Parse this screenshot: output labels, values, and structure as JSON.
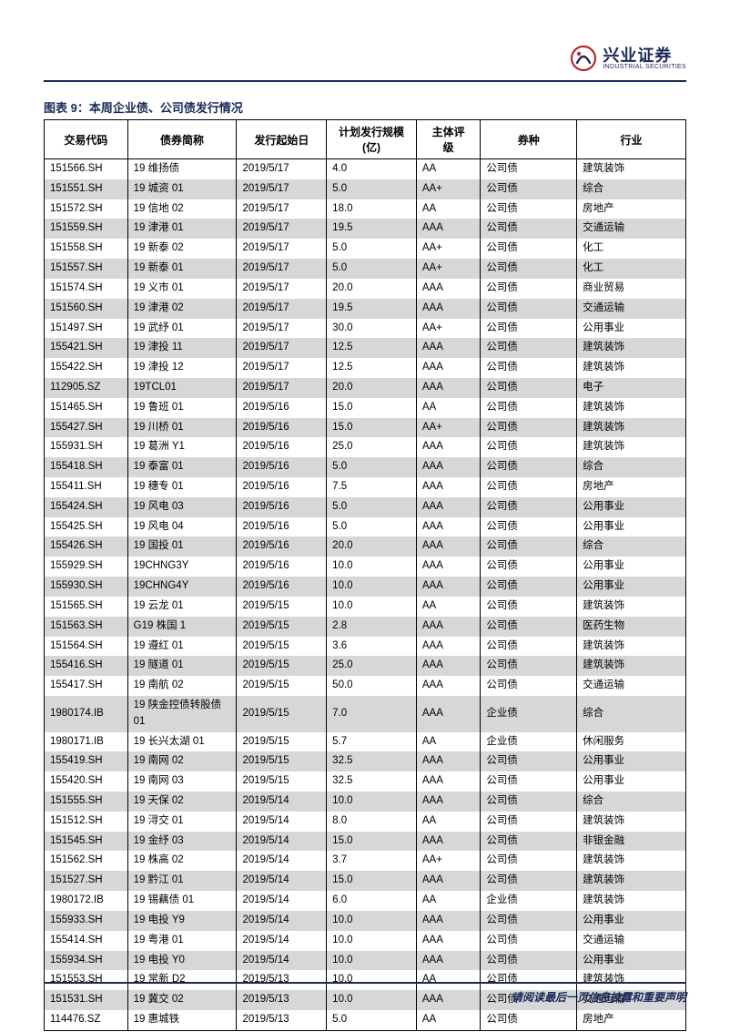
{
  "brand": {
    "name_cn": "兴业证券",
    "name_en": "INDUSTRIAL SECURITIES"
  },
  "chart_title": "图表 9：本周企业债、公司债发行情况",
  "footer_text": "请阅读最后一页信息披露和重要声明",
  "table": {
    "columns": [
      "交易代码",
      "债券简称",
      "发行起始日",
      "计划发行规模(亿)",
      "主体评级",
      "券种",
      "行业"
    ],
    "rows": [
      [
        "151566.SH",
        "19 维扬债",
        "2019/5/17",
        "4.0",
        "AA",
        "公司债",
        "建筑装饰"
      ],
      [
        "151551.SH",
        "19 城资 01",
        "2019/5/17",
        "5.0",
        "AA+",
        "公司债",
        "综合"
      ],
      [
        "151572.SH",
        "19 信地 02",
        "2019/5/17",
        "18.0",
        "AA",
        "公司债",
        "房地产"
      ],
      [
        "151559.SH",
        "19 津港 01",
        "2019/5/17",
        "19.5",
        "AAA",
        "公司债",
        "交通运输"
      ],
      [
        "151558.SH",
        "19 新泰 02",
        "2019/5/17",
        "5.0",
        "AA+",
        "公司债",
        "化工"
      ],
      [
        "151557.SH",
        "19 新泰 01",
        "2019/5/17",
        "5.0",
        "AA+",
        "公司债",
        "化工"
      ],
      [
        "151574.SH",
        "19 义市 01",
        "2019/5/17",
        "20.0",
        "AAA",
        "公司债",
        "商业贸易"
      ],
      [
        "151560.SH",
        "19 津港 02",
        "2019/5/17",
        "19.5",
        "AAA",
        "公司债",
        "交通运输"
      ],
      [
        "151497.SH",
        "19 武纾 01",
        "2019/5/17",
        "30.0",
        "AA+",
        "公司债",
        "公用事业"
      ],
      [
        "155421.SH",
        "19 津投 11",
        "2019/5/17",
        "12.5",
        "AAA",
        "公司债",
        "建筑装饰"
      ],
      [
        "155422.SH",
        "19 津投 12",
        "2019/5/17",
        "12.5",
        "AAA",
        "公司债",
        "建筑装饰"
      ],
      [
        "112905.SZ",
        "19TCL01",
        "2019/5/17",
        "20.0",
        "AAA",
        "公司债",
        "电子"
      ],
      [
        "151465.SH",
        "19 鲁班 01",
        "2019/5/16",
        "15.0",
        "AA",
        "公司债",
        "建筑装饰"
      ],
      [
        "155427.SH",
        "19 川桥 01",
        "2019/5/16",
        "15.0",
        "AA+",
        "公司债",
        "建筑装饰"
      ],
      [
        "155931.SH",
        "19 葛洲 Y1",
        "2019/5/16",
        "25.0",
        "AAA",
        "公司债",
        "建筑装饰"
      ],
      [
        "155418.SH",
        "19 泰富 01",
        "2019/5/16",
        "5.0",
        "AAA",
        "公司债",
        "综合"
      ],
      [
        "155411.SH",
        "19 穗专 01",
        "2019/5/16",
        "7.5",
        "AAA",
        "公司债",
        "房地产"
      ],
      [
        "155424.SH",
        "19 风电 03",
        "2019/5/16",
        "5.0",
        "AAA",
        "公司债",
        "公用事业"
      ],
      [
        "155425.SH",
        "19 风电 04",
        "2019/5/16",
        "5.0",
        "AAA",
        "公司债",
        "公用事业"
      ],
      [
        "155426.SH",
        "19 国投 01",
        "2019/5/16",
        "20.0",
        "AAA",
        "公司债",
        "综合"
      ],
      [
        "155929.SH",
        "19CHNG3Y",
        "2019/5/16",
        "10.0",
        "AAA",
        "公司债",
        "公用事业"
      ],
      [
        "155930.SH",
        "19CHNG4Y",
        "2019/5/16",
        "10.0",
        "AAA",
        "公司债",
        "公用事业"
      ],
      [
        "151565.SH",
        "19 云龙 01",
        "2019/5/15",
        "10.0",
        "AA",
        "公司债",
        "建筑装饰"
      ],
      [
        "151563.SH",
        "G19 株国 1",
        "2019/5/15",
        "2.8",
        "AAA",
        "公司债",
        "医药生物"
      ],
      [
        "151564.SH",
        "19 遵红 01",
        "2019/5/15",
        "3.6",
        "AAA",
        "公司债",
        "建筑装饰"
      ],
      [
        "155416.SH",
        "19 隧道 01",
        "2019/5/15",
        "25.0",
        "AAA",
        "公司债",
        "建筑装饰"
      ],
      [
        "155417.SH",
        "19 南航 02",
        "2019/5/15",
        "50.0",
        "AAA",
        "公司债",
        "交通运输"
      ],
      [
        "1980174.IB",
        "19 陕金控债转股债 01",
        "2019/5/15",
        "7.0",
        "AAA",
        "企业债",
        "综合"
      ],
      [
        "1980171.IB",
        "19 长兴太湖 01",
        "2019/5/15",
        "5.7",
        "AA",
        "企业债",
        "休闲服务"
      ],
      [
        "155419.SH",
        "19 南网 02",
        "2019/5/15",
        "32.5",
        "AAA",
        "公司债",
        "公用事业"
      ],
      [
        "155420.SH",
        "19 南网 03",
        "2019/5/15",
        "32.5",
        "AAA",
        "公司债",
        "公用事业"
      ],
      [
        "151555.SH",
        "19 天保 02",
        "2019/5/14",
        "10.0",
        "AAA",
        "公司债",
        "综合"
      ],
      [
        "151512.SH",
        "19 浔交 01",
        "2019/5/14",
        "8.0",
        "AA",
        "公司债",
        "建筑装饰"
      ],
      [
        "151545.SH",
        "19 金纾 03",
        "2019/5/14",
        "15.0",
        "AAA",
        "公司债",
        "非银金融"
      ],
      [
        "151562.SH",
        "19 株高 02",
        "2019/5/14",
        "3.7",
        "AA+",
        "公司债",
        "建筑装饰"
      ],
      [
        "151527.SH",
        "19 黔江 01",
        "2019/5/14",
        "15.0",
        "AAA",
        "公司债",
        "建筑装饰"
      ],
      [
        "1980172.IB",
        "19 锡藕债 01",
        "2019/5/14",
        "6.0",
        "AA",
        "企业债",
        "建筑装饰"
      ],
      [
        "155933.SH",
        "19 电投 Y9",
        "2019/5/14",
        "10.0",
        "AAA",
        "公司债",
        "公用事业"
      ],
      [
        "155414.SH",
        "19 粤港 01",
        "2019/5/14",
        "10.0",
        "AAA",
        "公司债",
        "交通运输"
      ],
      [
        "155934.SH",
        "19 电投 Y0",
        "2019/5/14",
        "10.0",
        "AAA",
        "公司债",
        "公用事业"
      ],
      [
        "151553.SH",
        "19 常新 D2",
        "2019/5/13",
        "10.0",
        "AA",
        "公司债",
        "建筑装饰"
      ],
      [
        "151531.SH",
        "19 冀交 02",
        "2019/5/13",
        "10.0",
        "AAA",
        "公司债",
        "交通运输"
      ],
      [
        "114476.SZ",
        "19 惠城铁",
        "2019/5/13",
        "5.0",
        "AA",
        "公司债",
        "房地产"
      ]
    ]
  },
  "style": {
    "border_color": "#000000",
    "header_border_color": "#1a2958",
    "row_even_bg": "#d7d7da",
    "row_odd_bg": "#ffffff",
    "column_widths_pct": [
      13,
      17,
      14,
      14,
      10,
      15,
      17
    ]
  }
}
